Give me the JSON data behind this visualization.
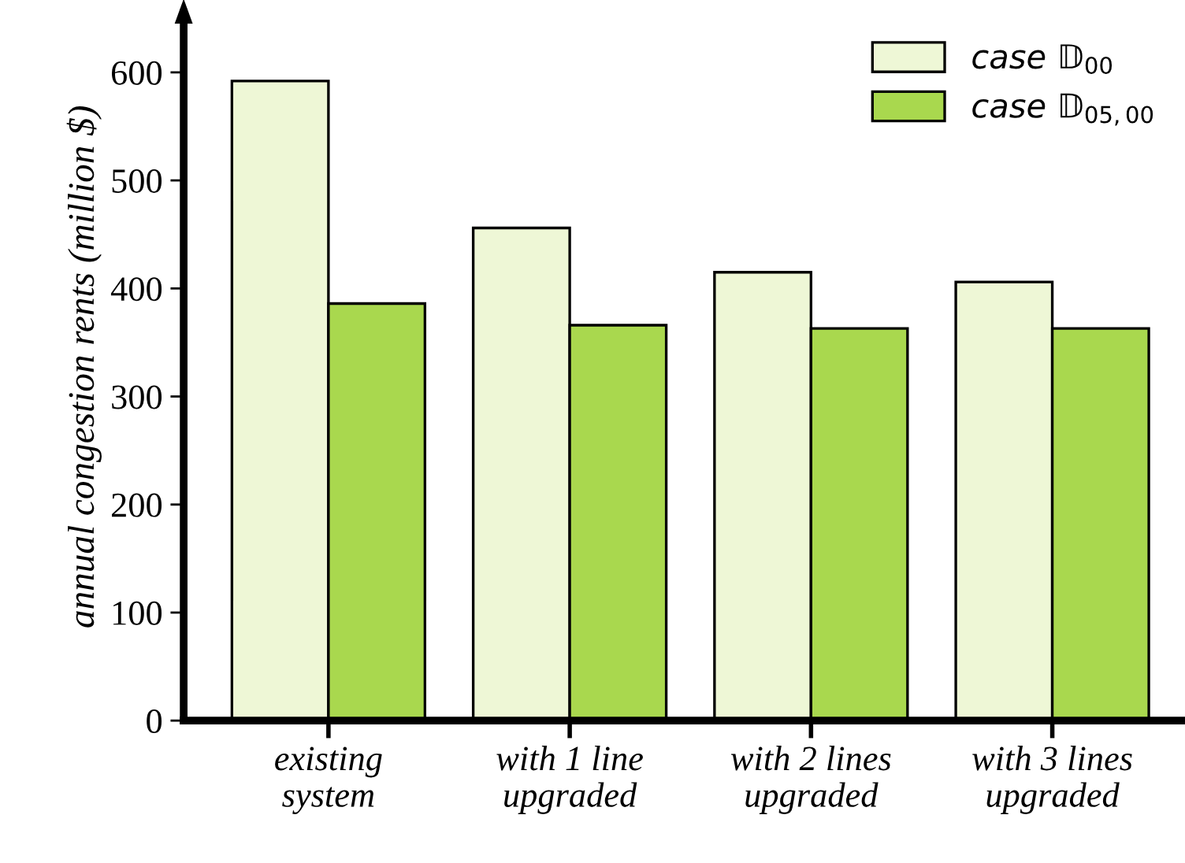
{
  "chart_data": {
    "type": "bar",
    "ylabel": "annual congestion rents (million $)",
    "categories": [
      "existing\nsystem",
      "with 1 line\nupgraded",
      "with 2 lines\nupgraded",
      "with 3 lines\nupgraded"
    ],
    "series": [
      {
        "name": "case 𝔻$_{00}$",
        "color": "#eef7d6",
        "values": [
          592,
          456,
          415,
          406
        ]
      },
      {
        "name": "case 𝔻$_{05,00}$",
        "color": "#a9d84e",
        "values": [
          386,
          366,
          363,
          363
        ]
      }
    ],
    "ylim": [
      0,
      655
    ],
    "yticks": [
      0,
      100,
      200,
      300,
      400,
      500,
      600
    ],
    "grid": false,
    "legend": "top right"
  }
}
